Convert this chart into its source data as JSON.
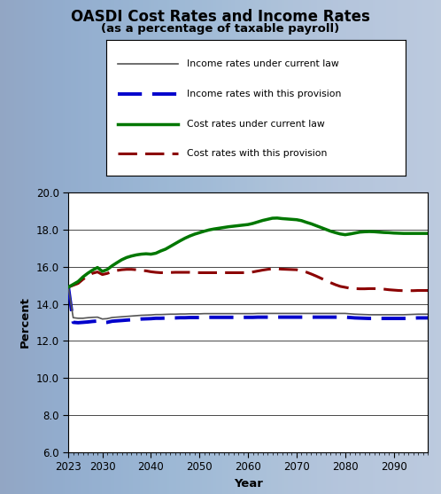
{
  "title": "OASDI Cost Rates and Income Rates",
  "subtitle": "(as a percentage of taxable payroll)",
  "xlabel": "Year",
  "ylabel": "Percent",
  "ylim": [
    6.0,
    20.0
  ],
  "yticks": [
    6.0,
    8.0,
    10.0,
    12.0,
    14.0,
    16.0,
    18.0,
    20.0
  ],
  "xticks": [
    2023,
    2030,
    2040,
    2050,
    2060,
    2070,
    2080,
    2090
  ],
  "bg_color": "#b0c0d8",
  "years": [
    2023,
    2024,
    2025,
    2026,
    2027,
    2028,
    2029,
    2030,
    2031,
    2032,
    2033,
    2034,
    2035,
    2036,
    2037,
    2038,
    2039,
    2040,
    2041,
    2042,
    2043,
    2044,
    2045,
    2046,
    2047,
    2048,
    2049,
    2050,
    2051,
    2052,
    2053,
    2054,
    2055,
    2056,
    2057,
    2058,
    2059,
    2060,
    2061,
    2062,
    2063,
    2064,
    2065,
    2066,
    2067,
    2068,
    2069,
    2070,
    2071,
    2072,
    2073,
    2074,
    2075,
    2076,
    2077,
    2078,
    2079,
    2080,
    2081,
    2082,
    2083,
    2084,
    2085,
    2086,
    2087,
    2088,
    2089,
    2090,
    2091,
    2092,
    2093,
    2094,
    2095,
    2096,
    2097
  ],
  "income_current_law": [
    14.9,
    13.25,
    13.22,
    13.22,
    13.25,
    13.27,
    13.28,
    13.18,
    13.2,
    13.26,
    13.28,
    13.3,
    13.32,
    13.34,
    13.36,
    13.38,
    13.39,
    13.4,
    13.42,
    13.42,
    13.43,
    13.44,
    13.44,
    13.45,
    13.45,
    13.46,
    13.46,
    13.46,
    13.47,
    13.47,
    13.47,
    13.47,
    13.47,
    13.47,
    13.47,
    13.47,
    13.47,
    13.47,
    13.47,
    13.48,
    13.48,
    13.48,
    13.48,
    13.48,
    13.48,
    13.48,
    13.48,
    13.48,
    13.48,
    13.48,
    13.48,
    13.48,
    13.48,
    13.48,
    13.48,
    13.48,
    13.48,
    13.48,
    13.46,
    13.44,
    13.43,
    13.42,
    13.41,
    13.41,
    13.41,
    13.41,
    13.41,
    13.41,
    13.41,
    13.41,
    13.42,
    13.43,
    13.44,
    13.44,
    13.44
  ],
  "income_provision": [
    14.9,
    13.0,
    12.98,
    13.0,
    13.02,
    13.05,
    13.07,
    12.98,
    13.0,
    13.06,
    13.08,
    13.1,
    13.12,
    13.14,
    13.16,
    13.18,
    13.19,
    13.2,
    13.22,
    13.22,
    13.23,
    13.24,
    13.24,
    13.25,
    13.25,
    13.26,
    13.26,
    13.26,
    13.27,
    13.27,
    13.27,
    13.27,
    13.27,
    13.27,
    13.27,
    13.27,
    13.27,
    13.27,
    13.27,
    13.28,
    13.28,
    13.28,
    13.28,
    13.28,
    13.28,
    13.28,
    13.28,
    13.28,
    13.28,
    13.28,
    13.28,
    13.28,
    13.28,
    13.28,
    13.28,
    13.28,
    13.28,
    13.28,
    13.26,
    13.24,
    13.23,
    13.22,
    13.21,
    13.21,
    13.21,
    13.21,
    13.21,
    13.21,
    13.21,
    13.21,
    13.22,
    13.23,
    13.24,
    13.24,
    13.24
  ],
  "cost_current_law": [
    14.9,
    15.05,
    15.2,
    15.45,
    15.65,
    15.82,
    15.96,
    15.75,
    15.85,
    16.05,
    16.22,
    16.38,
    16.5,
    16.58,
    16.64,
    16.68,
    16.7,
    16.68,
    16.73,
    16.85,
    16.95,
    17.1,
    17.25,
    17.4,
    17.54,
    17.66,
    17.76,
    17.84,
    17.92,
    17.99,
    18.04,
    18.08,
    18.12,
    18.16,
    18.19,
    18.22,
    18.25,
    18.28,
    18.34,
    18.42,
    18.5,
    18.56,
    18.62,
    18.63,
    18.6,
    18.58,
    18.56,
    18.54,
    18.49,
    18.4,
    18.32,
    18.22,
    18.12,
    18.02,
    17.92,
    17.84,
    17.77,
    17.73,
    17.77,
    17.82,
    17.87,
    17.89,
    17.9,
    17.89,
    17.87,
    17.85,
    17.84,
    17.82,
    17.81,
    17.8,
    17.8,
    17.8,
    17.8,
    17.8,
    17.8
  ],
  "cost_provision": [
    14.9,
    15.0,
    15.1,
    15.32,
    15.5,
    15.65,
    15.72,
    15.58,
    15.64,
    15.74,
    15.8,
    15.84,
    15.86,
    15.86,
    15.84,
    15.8,
    15.78,
    15.73,
    15.7,
    15.68,
    15.68,
    15.69,
    15.7,
    15.7,
    15.7,
    15.7,
    15.69,
    15.68,
    15.68,
    15.68,
    15.68,
    15.68,
    15.68,
    15.68,
    15.68,
    15.68,
    15.68,
    15.68,
    15.72,
    15.77,
    15.82,
    15.86,
    15.89,
    15.89,
    15.87,
    15.86,
    15.85,
    15.84,
    15.79,
    15.71,
    15.61,
    15.5,
    15.38,
    15.26,
    15.14,
    15.03,
    14.94,
    14.89,
    14.84,
    14.82,
    14.81,
    14.81,
    14.82,
    14.82,
    14.81,
    14.79,
    14.76,
    14.74,
    14.72,
    14.71,
    14.71,
    14.71,
    14.72,
    14.72,
    14.72
  ],
  "income_current_law_color": "#555555",
  "income_provision_color": "#0000cc",
  "cost_current_law_color": "#007700",
  "cost_provision_color": "#8b0000",
  "legend_labels": [
    "Income rates under current law",
    "Income rates with this provision",
    "Cost rates under current law",
    "Cost rates with this provision"
  ]
}
